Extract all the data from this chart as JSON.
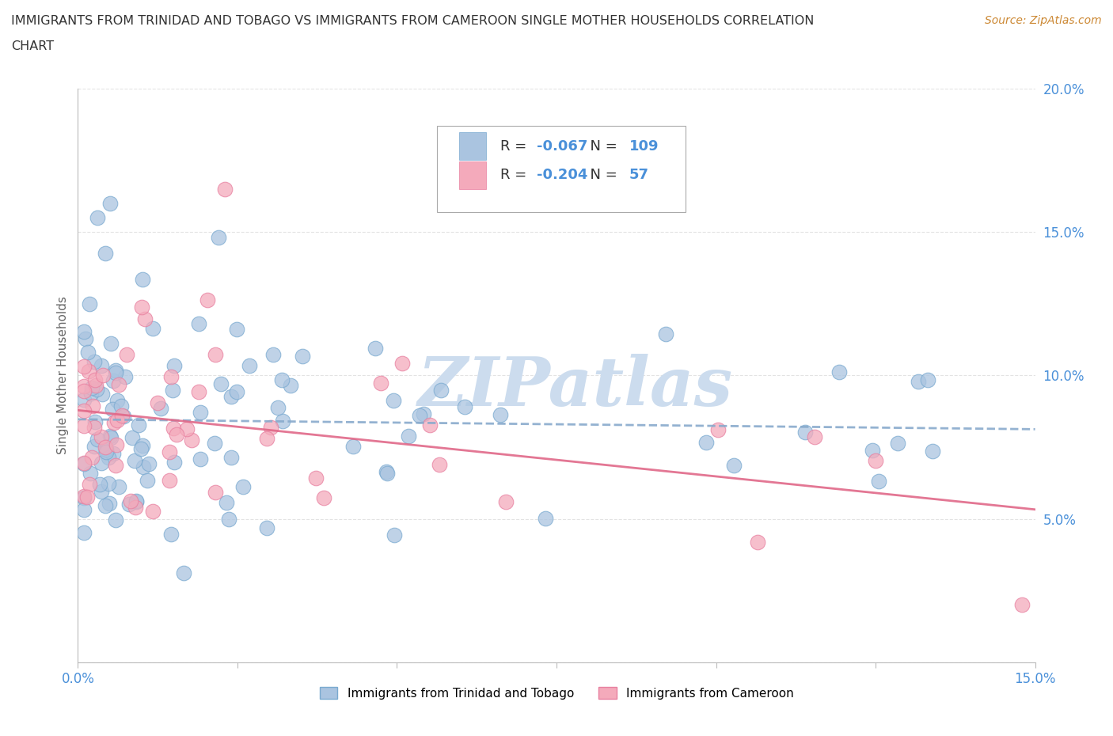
{
  "title_line1": "IMMIGRANTS FROM TRINIDAD AND TOBAGO VS IMMIGRANTS FROM CAMEROON SINGLE MOTHER HOUSEHOLDS CORRELATION",
  "title_line2": "CHART",
  "source": "Source: ZipAtlas.com",
  "ylabel": "Single Mother Households",
  "legend_label_1": "Immigrants from Trinidad and Tobago",
  "legend_label_2": "Immigrants from Cameroon",
  "R1": -0.067,
  "N1": 109,
  "R2": -0.204,
  "N2": 57,
  "color_blue": "#aac4e0",
  "color_pink": "#f4aabb",
  "color_blue_edge": "#7aaad0",
  "color_pink_edge": "#e880a0",
  "trend_blue_color": "#88aacc",
  "trend_pink_color": "#e06888",
  "xmin": 0.0,
  "xmax": 0.15,
  "ymin": 0.0,
  "ymax": 0.2,
  "watermark": "ZIPatlas",
  "watermark_color": "#ccdcee",
  "tick_color": "#4a90d9",
  "ylabel_color": "#666666",
  "title_color": "#333333",
  "source_color": "#cc8833",
  "legend_text_color": "#333333",
  "legend_value_color": "#4a90d9",
  "grid_color": "#dddddd"
}
